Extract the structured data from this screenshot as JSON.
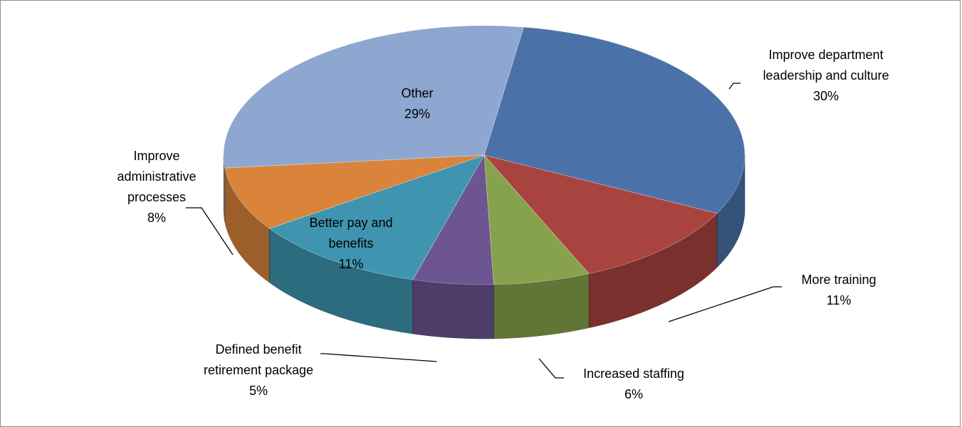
{
  "chart_data": {
    "type": "pie",
    "title": "",
    "categories": [
      "Improve department leadership and culture",
      "More training",
      "Increased staffing",
      "Defined benefit retirement package",
      "Better pay and benefits",
      "Improve administrative processes",
      "Other"
    ],
    "values": [
      30,
      11,
      6,
      5,
      11,
      8,
      29
    ],
    "colors": [
      "#4a72a8",
      "#a9433f",
      "#87a24c",
      "#6c5591",
      "#3f95b0",
      "#d9833b",
      "#8ea7d1"
    ],
    "labels": [
      {
        "lines": [
          "Improve department",
          "leadership and culture"
        ],
        "pct": "30%"
      },
      {
        "lines": [
          "More training"
        ],
        "pct": "11%"
      },
      {
        "lines": [
          "Increased staffing"
        ],
        "pct": "6%"
      },
      {
        "lines": [
          "Defined benefit",
          "retirement package"
        ],
        "pct": "5%"
      },
      {
        "lines": [
          "Better pay and",
          "benefits"
        ],
        "pct": "11%"
      },
      {
        "lines": [
          "Improve",
          "administrative",
          "processes"
        ],
        "pct": "8%"
      },
      {
        "lines": [
          "Other"
        ],
        "pct": "29%"
      }
    ],
    "three_d": true,
    "legend": "none"
  }
}
